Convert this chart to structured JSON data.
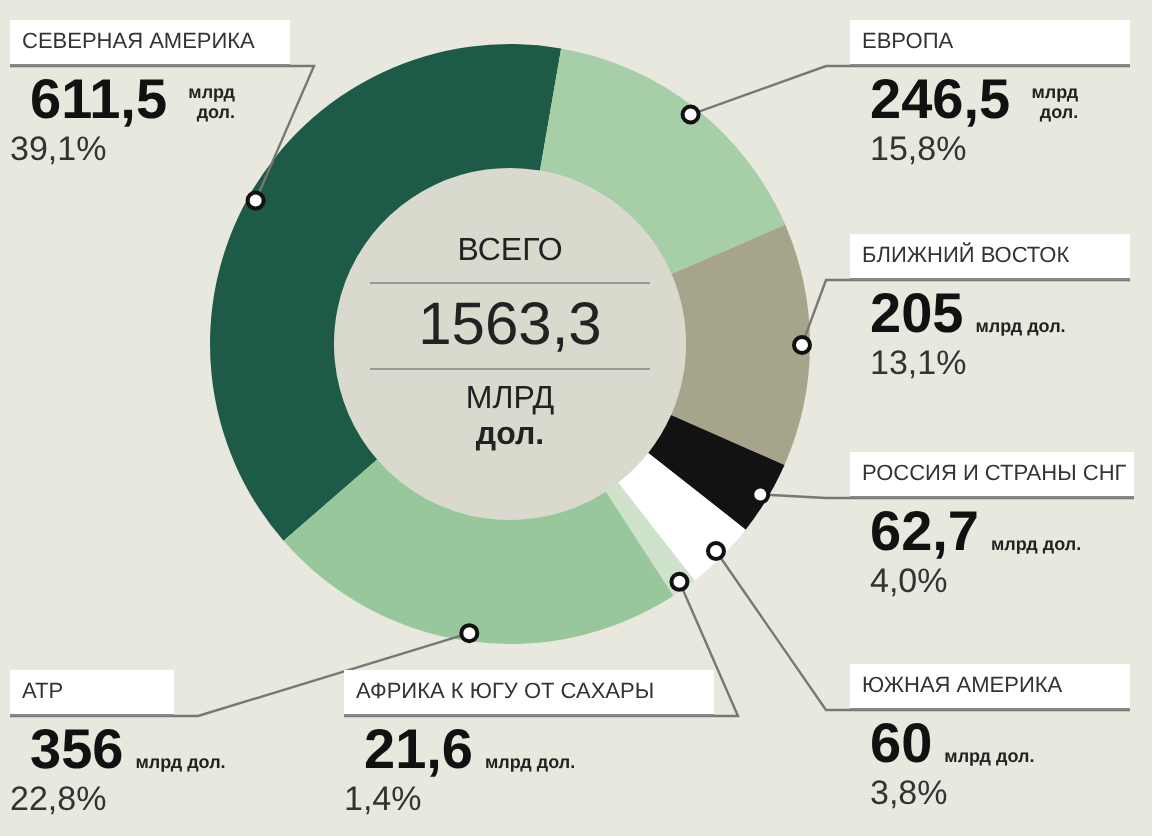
{
  "chart_data": {
    "type": "donut",
    "categories": [
      "СЕВЕРНАЯ АМЕРИКА",
      "ЕВРОПА",
      "БЛИЖНИЙ ВОСТОК",
      "РОССИЯ И СТРАНЫ СНГ",
      "ЮЖНАЯ АМЕРИКА",
      "АФРИКА К ЮГУ ОТ САХАРЫ",
      "АТР"
    ],
    "values": [
      611.5,
      246.5,
      205,
      62.7,
      60,
      21.6,
      356
    ],
    "value_labels": [
      "611,5",
      "246,5",
      "205",
      "62,7",
      "60",
      "21,6",
      "356"
    ],
    "colors": [
      "#1e5a48",
      "#a6cfa8",
      "#a7a48c",
      "#121212",
      "#ffffff",
      "#cfe2cb",
      "#97c79a"
    ],
    "ylabel": "млрд дол.",
    "annotations": [
      "ВСЕГО",
      "1563,3",
      "МЛРД",
      "дол.",
      "39,1%",
      "15,8%",
      "13,1%",
      "4,0%",
      "3,8%",
      "1,4%",
      "22,8%"
    ],
    "legend": false
  }
}
